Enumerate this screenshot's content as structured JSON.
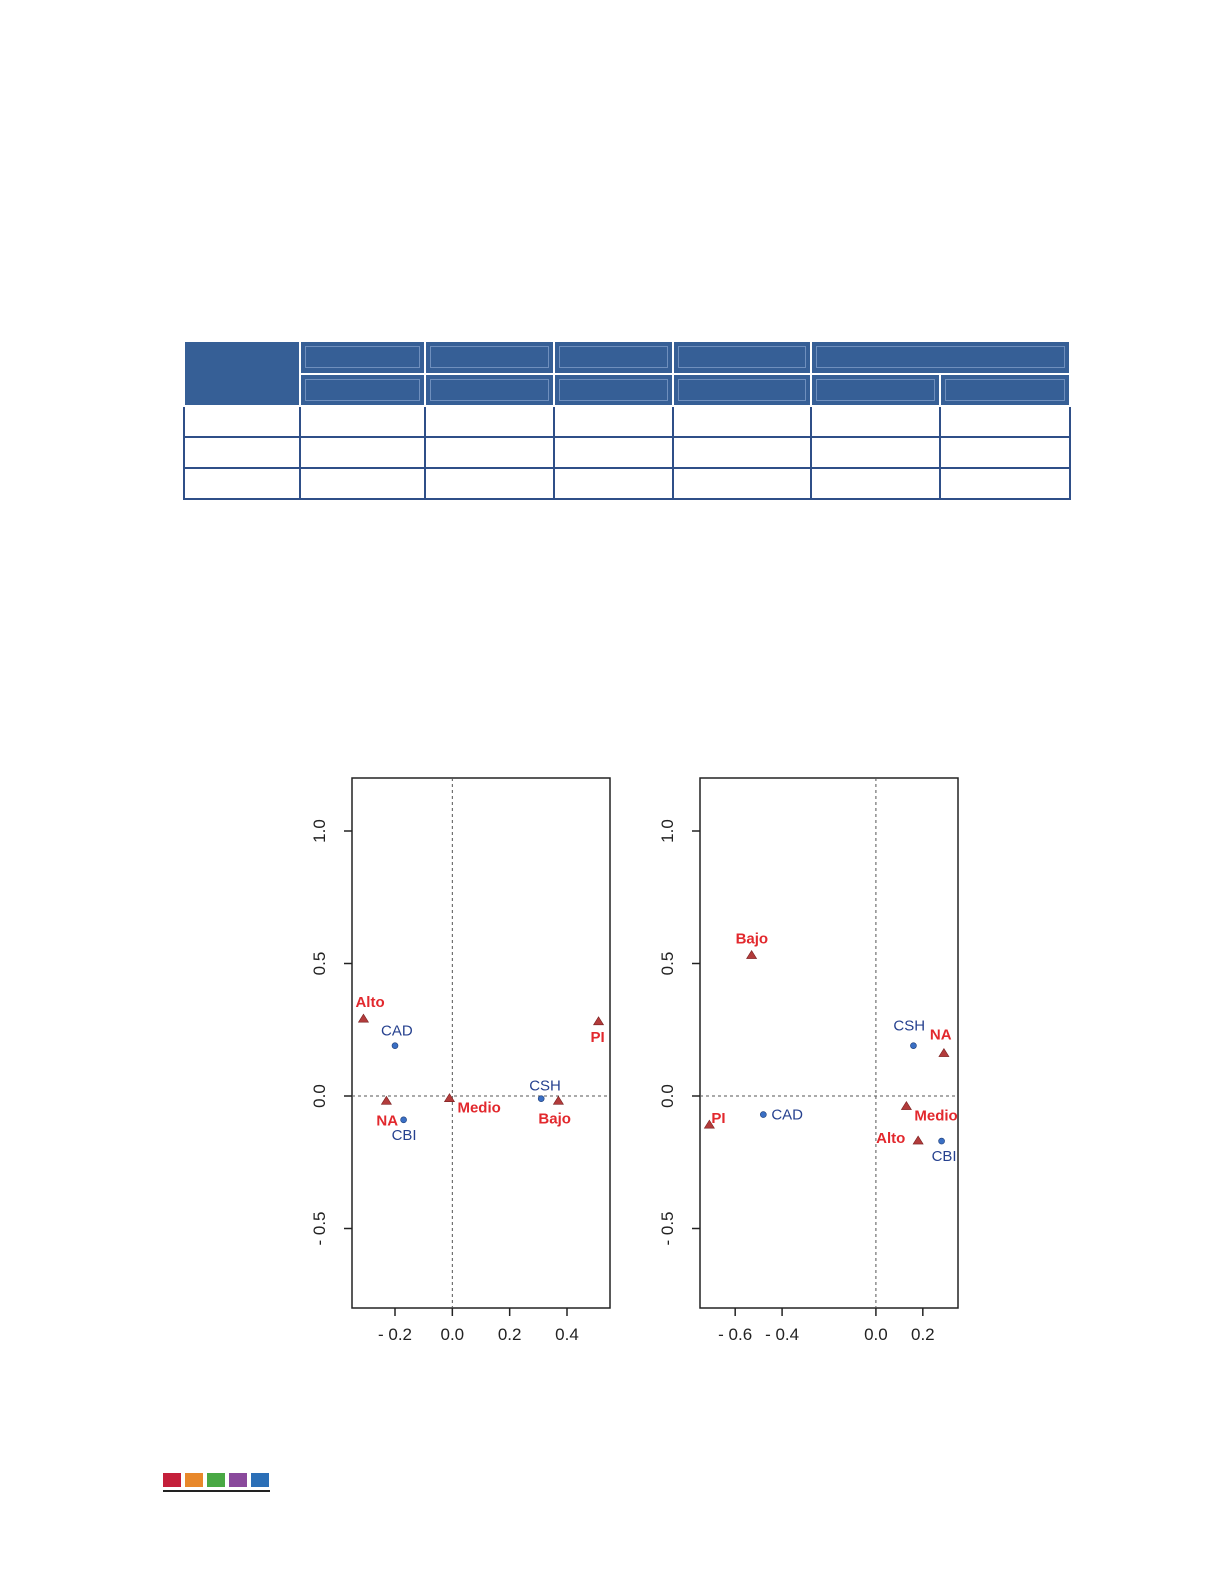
{
  "colors": {
    "table_header": "#365f96",
    "table_border": "#2f4f88",
    "category_red": "#e2282d",
    "marker_triangle": "#b23b3b",
    "point_blue": "#3a6fc4",
    "label_blue": "#26418f",
    "footer_squares": [
      "#c41f3a",
      "#e8882a",
      "#49a844",
      "#8a4a9c",
      "#2c6fb7"
    ]
  },
  "chart_data": [
    {
      "type": "scatter",
      "xlim": [
        -0.35,
        0.55
      ],
      "ylim": [
        -0.8,
        1.2
      ],
      "x_ticks": [
        "- 0.2",
        "0.0",
        "0.2",
        "0.4"
      ],
      "x_tick_values": [
        -0.2,
        0.0,
        0.2,
        0.4
      ],
      "y_ticks": [
        "- 0.5",
        "0.0",
        "0.5",
        "1.0"
      ],
      "y_tick_values": [
        -0.5,
        0.0,
        0.5,
        1.0
      ],
      "reference_lines": {
        "x": 0,
        "y": 0,
        "style": "dashed"
      },
      "series": [
        {
          "marker": "triangle",
          "color": "#b23b3b",
          "label_color": "#e2282d",
          "points": [
            {
              "label": "Alto",
              "x": -0.31,
              "y": 0.29
            },
            {
              "label": "NA",
              "x": -0.23,
              "y": -0.02
            },
            {
              "label": "Medio",
              "x": -0.01,
              "y": -0.01
            },
            {
              "label": "Bajo",
              "x": 0.37,
              "y": -0.02
            },
            {
              "label": "PI",
              "x": 0.51,
              "y": 0.28
            }
          ]
        },
        {
          "marker": "circle",
          "color": "#3a6fc4",
          "label_color": "#26418f",
          "points": [
            {
              "label": "CAD",
              "x": -0.2,
              "y": 0.19
            },
            {
              "label": "CBI",
              "x": -0.17,
              "y": -0.09
            },
            {
              "label": "CSH",
              "x": 0.31,
              "y": -0.01
            }
          ]
        }
      ]
    },
    {
      "type": "scatter",
      "xlim": [
        -0.75,
        0.35
      ],
      "ylim": [
        -0.8,
        1.2
      ],
      "x_ticks": [
        "- 0.6",
        "- 0.4",
        "0.0",
        "0.2"
      ],
      "x_tick_values": [
        -0.6,
        -0.4,
        0.0,
        0.2
      ],
      "y_ticks": [
        "- 0.5",
        "0.0",
        "0.5",
        "1.0"
      ],
      "y_tick_values": [
        -0.5,
        0.0,
        0.5,
        1.0
      ],
      "reference_lines": {
        "x": 0,
        "y": 0,
        "style": "dashed"
      },
      "series": [
        {
          "marker": "triangle",
          "color": "#b23b3b",
          "label_color": "#e2282d",
          "points": [
            {
              "label": "Bajo",
              "x": -0.53,
              "y": 0.53
            },
            {
              "label": "NA",
              "x": 0.29,
              "y": 0.16
            },
            {
              "label": "Medio",
              "x": 0.13,
              "y": -0.04
            },
            {
              "label": "Alto",
              "x": 0.18,
              "y": -0.17
            },
            {
              "label": "PI",
              "x": -0.71,
              "y": -0.11
            }
          ]
        },
        {
          "marker": "circle",
          "color": "#3a6fc4",
          "label_color": "#26418f",
          "points": [
            {
              "label": "CSH",
              "x": 0.16,
              "y": 0.19
            },
            {
              "label": "CAD",
              "x": -0.48,
              "y": -0.07
            },
            {
              "label": "CBI",
              "x": 0.28,
              "y": -0.17
            }
          ]
        }
      ]
    }
  ]
}
